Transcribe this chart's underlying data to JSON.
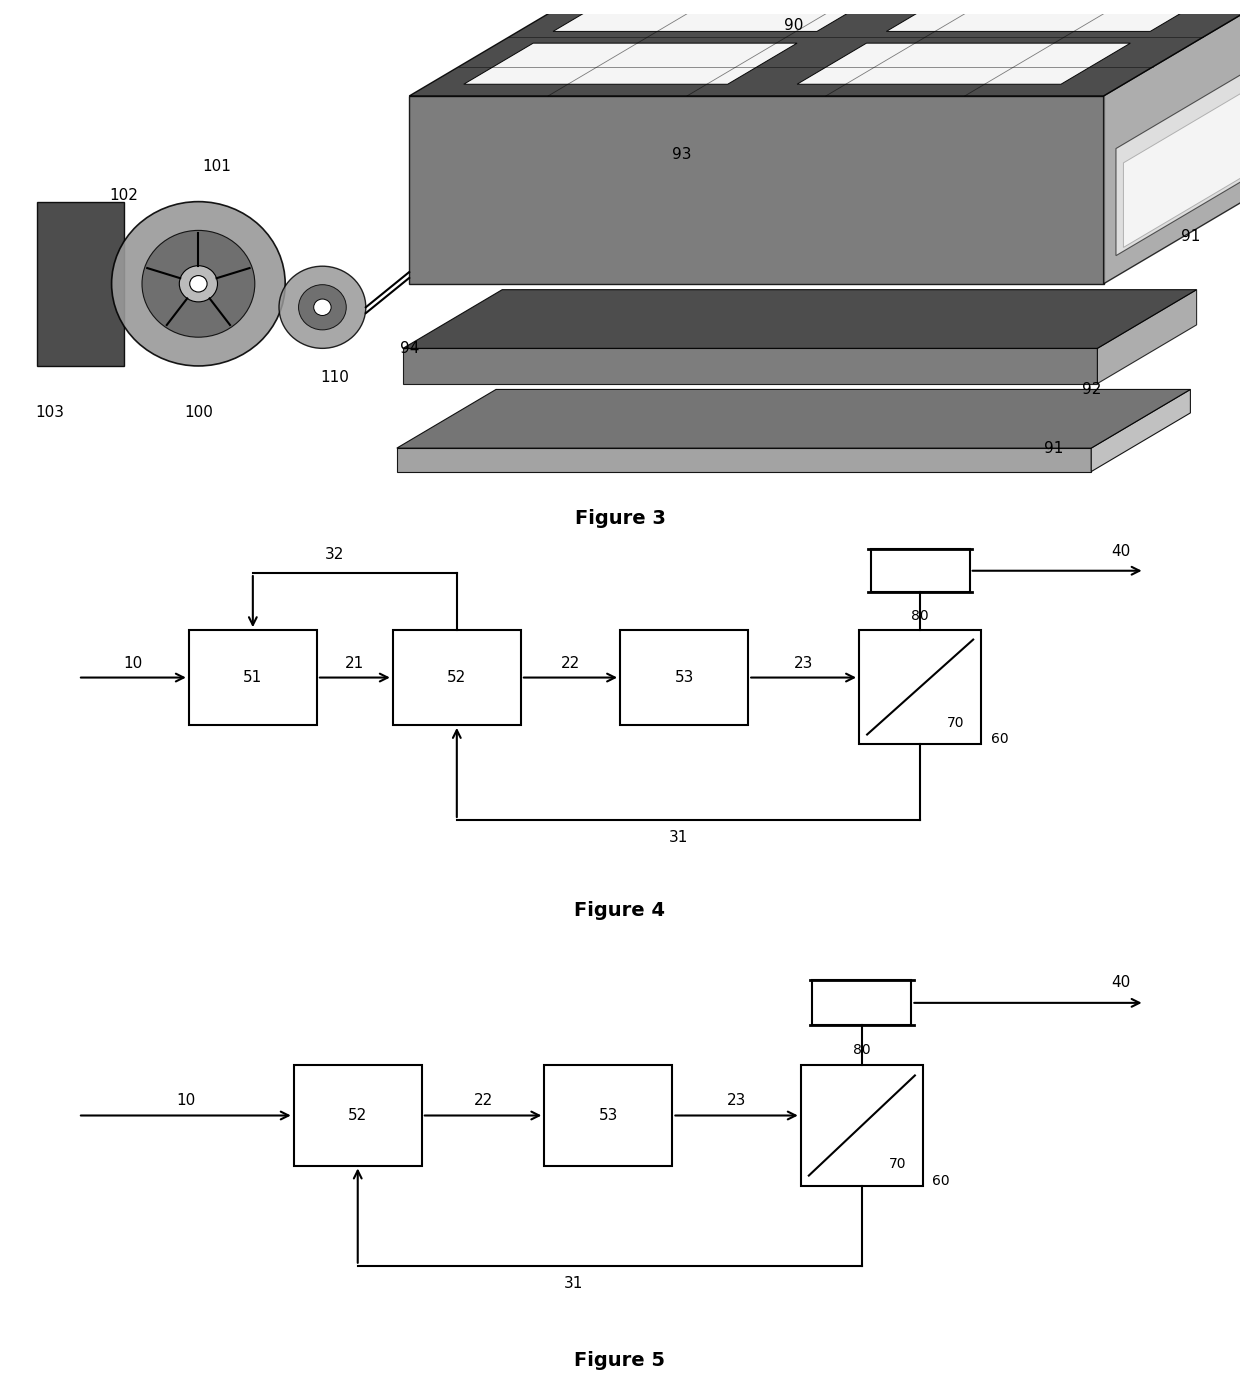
{
  "bg_color": "#ffffff",
  "fig_width": 12.4,
  "fig_height": 13.81,
  "fig3_caption": "Figure 3",
  "fig4_caption": "Figure 4",
  "fig5_caption": "Figure 5",
  "line_color": "#000000",
  "line_width": 1.5,
  "font_size_label": 11,
  "font_size_caption": 14
}
